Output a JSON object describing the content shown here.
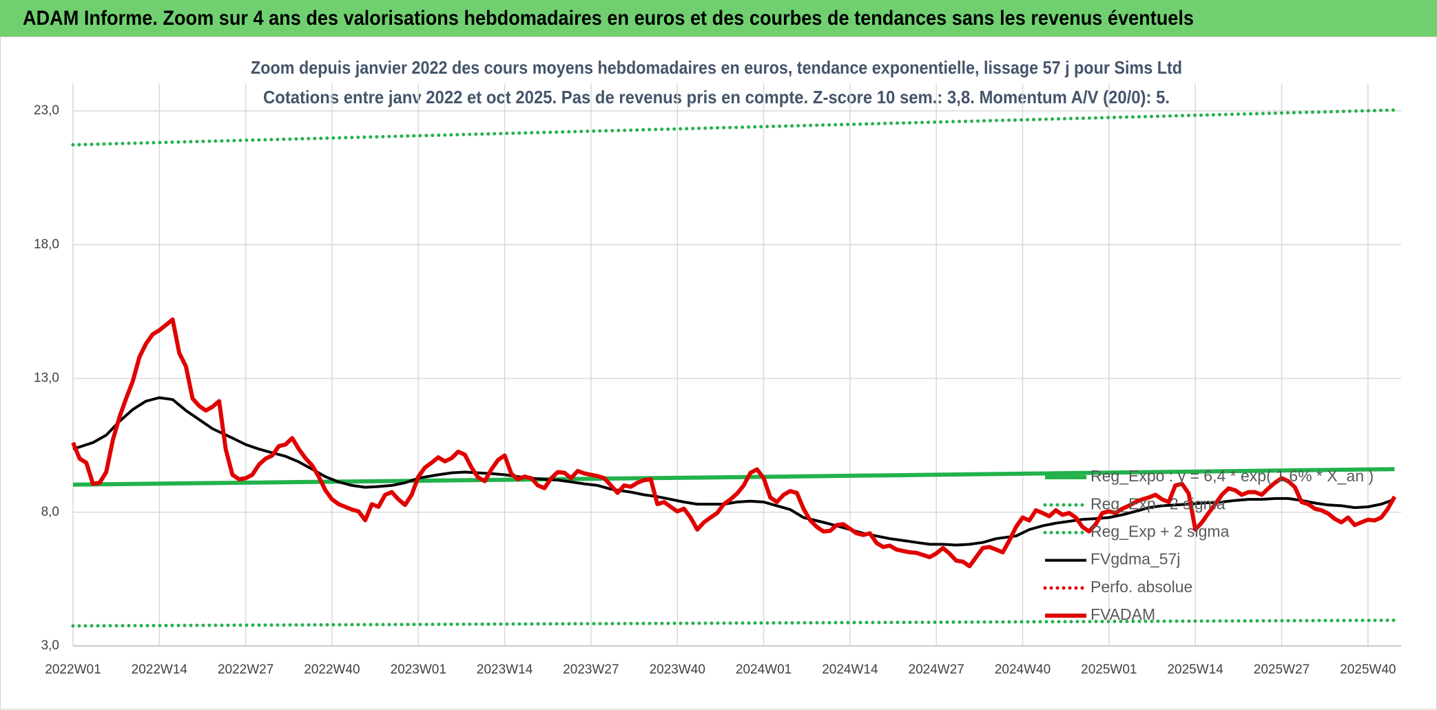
{
  "header": {
    "title": "ADAM Informe. Zoom sur 4 ans des valorisations hebdomadaires en euros et des courbes de tendances sans les revenus éventuels"
  },
  "chart_data": {
    "type": "line",
    "title": "Zoom depuis janvier 2022 des cours moyens hebdomadaires en euros, tendance exponentielle, lissage 57 j pour Sims Ltd",
    "subtitle": "Cotations entre janv 2022 et oct 2025. Pas de revenus pris en compte. Z-score 10 sem.: 3,8. Momentum A/V (20/0): 5.",
    "xlim": [
      0,
      200
    ],
    "xticks": [
      {
        "value": 0,
        "label": "2022W01"
      },
      {
        "value": 13,
        "label": "2022W14"
      },
      {
        "value": 26,
        "label": "2022W27"
      },
      {
        "value": 39,
        "label": "2022W40"
      },
      {
        "value": 52,
        "label": "2023W01"
      },
      {
        "value": 65,
        "label": "2023W14"
      },
      {
        "value": 78,
        "label": "2023W27"
      },
      {
        "value": 91,
        "label": "2023W40"
      },
      {
        "value": 104,
        "label": "2024W01"
      },
      {
        "value": 117,
        "label": "2024W14"
      },
      {
        "value": 130,
        "label": "2024W27"
      },
      {
        "value": 143,
        "label": "2024W40"
      },
      {
        "value": 156,
        "label": "2025W01"
      },
      {
        "value": 169,
        "label": "2025W14"
      },
      {
        "value": 182,
        "label": "2025W27"
      },
      {
        "value": 195,
        "label": "2025W40"
      }
    ],
    "ylim": [
      3,
      23
    ],
    "yticks": [
      {
        "value": 3,
        "label": "3,0"
      },
      {
        "value": 8,
        "label": "8,0"
      },
      {
        "value": 13,
        "label": "13,0"
      },
      {
        "value": 18,
        "label": "18,0"
      },
      {
        "value": 23,
        "label": "23,0"
      }
    ],
    "grid": true,
    "legend": "right",
    "series": [
      {
        "name": "Reg_Expo : y = 6,4 * exp( 1,6% * X_an )",
        "color": "#22b14c",
        "style": "solid",
        "x": [
          0,
          100,
          199
        ],
        "values": [
          9.03,
          9.31,
          9.61
        ]
      },
      {
        "name": "Reg_Exp - 2 sigma",
        "color": "#22b14c",
        "style": "dotted",
        "x": [
          0,
          199
        ],
        "values": [
          3.75,
          3.96
        ]
      },
      {
        "name": "Reg_Exp + 2 sigma",
        "color": "#22b14c",
        "style": "dotted",
        "x": [
          0,
          199
        ],
        "values": [
          21.73,
          23.03
        ]
      },
      {
        "name": "FVgdma_57j",
        "color": "#000000",
        "style": "solid",
        "x": [
          0,
          3,
          5,
          7,
          9,
          11,
          13,
          15,
          17,
          19,
          21,
          24,
          26,
          28,
          30,
          32,
          34,
          36,
          38,
          40,
          42,
          44,
          46,
          48,
          50,
          52,
          55,
          57,
          59,
          61,
          63,
          65,
          67,
          69,
          71,
          73,
          75,
          77,
          79,
          81,
          84,
          86,
          88,
          90,
          92,
          94,
          96,
          98,
          100,
          102,
          104,
          106,
          108,
          110,
          113,
          115,
          117,
          119,
          121,
          123,
          125,
          127,
          129,
          131,
          133,
          135,
          137,
          139,
          142,
          144,
          146,
          148,
          150,
          152,
          154,
          156,
          158,
          160,
          162,
          164,
          166,
          168,
          170,
          173,
          175,
          177,
          179,
          181,
          183,
          185,
          187,
          189,
          191,
          193,
          195,
          197,
          199
        ],
        "values": [
          10.36,
          10.6,
          10.88,
          11.4,
          11.84,
          12.15,
          12.28,
          12.21,
          11.8,
          11.46,
          11.12,
          10.77,
          10.53,
          10.36,
          10.22,
          10.09,
          9.88,
          9.61,
          9.33,
          9.13,
          9.0,
          8.93,
          8.96,
          9.0,
          9.1,
          9.27,
          9.4,
          9.47,
          9.5,
          9.47,
          9.44,
          9.4,
          9.33,
          9.27,
          9.23,
          9.2,
          9.13,
          9.06,
          9.0,
          8.86,
          8.75,
          8.65,
          8.58,
          8.48,
          8.38,
          8.3,
          8.3,
          8.3,
          8.38,
          8.41,
          8.38,
          8.24,
          8.1,
          7.8,
          7.62,
          7.49,
          7.35,
          7.21,
          7.11,
          7.01,
          6.94,
          6.87,
          6.8,
          6.8,
          6.77,
          6.8,
          6.87,
          7.01,
          7.11,
          7.35,
          7.49,
          7.59,
          7.66,
          7.73,
          7.76,
          7.8,
          7.9,
          8.03,
          8.17,
          8.24,
          8.27,
          8.3,
          8.34,
          8.38,
          8.44,
          8.48,
          8.48,
          8.51,
          8.51,
          8.44,
          8.34,
          8.27,
          8.24,
          8.17,
          8.2,
          8.3,
          8.48
        ]
      },
      {
        "name": "Perfo. absolue",
        "color": "#e00000",
        "style": "dotted",
        "x": [],
        "values": []
      },
      {
        "name": "FVADAM",
        "color": "#e00000",
        "style": "solid",
        "x": [
          0,
          1,
          2,
          3,
          4,
          5,
          6,
          7,
          8,
          9,
          10,
          11,
          12,
          13,
          14,
          15,
          16,
          17,
          18,
          19,
          20,
          21,
          22,
          23,
          24,
          25,
          26,
          27,
          28,
          29,
          30,
          31,
          32,
          33,
          34,
          35,
          36,
          37,
          38,
          39,
          40,
          41,
          42,
          43,
          44,
          45,
          46,
          47,
          48,
          49,
          50,
          51,
          52,
          53,
          54,
          55,
          56,
          57,
          58,
          59,
          60,
          61,
          62,
          63,
          64,
          65,
          66,
          67,
          68,
          69,
          70,
          71,
          72,
          73,
          74,
          75,
          76,
          77,
          78,
          79,
          80,
          81,
          82,
          83,
          84,
          85,
          86,
          87,
          88,
          89,
          90,
          91,
          92,
          93,
          94,
          95,
          96,
          97,
          98,
          99,
          100,
          101,
          102,
          103,
          104,
          105,
          106,
          107,
          108,
          109,
          110,
          111,
          112,
          113,
          114,
          115,
          116,
          117,
          118,
          119,
          120,
          121,
          122,
          123,
          124,
          125,
          126,
          127,
          128,
          129,
          130,
          131,
          132,
          133,
          134,
          135,
          136,
          137,
          138,
          139,
          140,
          141,
          142,
          143,
          144,
          145,
          146,
          147,
          148,
          149,
          150,
          151,
          152,
          153,
          154,
          155,
          156,
          157,
          158,
          159,
          160,
          161,
          162,
          163,
          164,
          165,
          166,
          167,
          168,
          169,
          170,
          171,
          172,
          173,
          174,
          175,
          176,
          177,
          178,
          179,
          180,
          181,
          182,
          183,
          184,
          185,
          186,
          187,
          188,
          189,
          190,
          191,
          192,
          193,
          194,
          195,
          196,
          197,
          198,
          199
        ],
        "values": [
          10.6,
          10.0,
          9.85,
          9.06,
          9.1,
          9.5,
          10.7,
          11.56,
          12.25,
          12.9,
          13.8,
          14.3,
          14.65,
          14.8,
          15.0,
          15.2,
          13.95,
          13.45,
          12.25,
          11.97,
          11.8,
          11.94,
          12.15,
          10.35,
          9.4,
          9.23,
          9.27,
          9.4,
          9.78,
          10.0,
          10.12,
          10.47,
          10.53,
          10.77,
          10.36,
          10.02,
          9.75,
          9.33,
          8.82,
          8.48,
          8.3,
          8.2,
          8.1,
          8.03,
          7.7,
          8.3,
          8.2,
          8.65,
          8.75,
          8.48,
          8.27,
          8.65,
          9.33,
          9.67,
          9.85,
          10.05,
          9.9,
          10.02,
          10.26,
          10.15,
          9.67,
          9.3,
          9.16,
          9.6,
          9.95,
          10.12,
          9.44,
          9.23,
          9.33,
          9.27,
          9.0,
          8.9,
          9.27,
          9.5,
          9.47,
          9.27,
          9.54,
          9.45,
          9.4,
          9.35,
          9.27,
          9.0,
          8.72,
          9.0,
          8.95,
          9.1,
          9.2,
          9.23,
          8.3,
          8.38,
          8.2,
          8.03,
          8.13,
          7.8,
          7.35,
          7.62,
          7.8,
          7.97,
          8.3,
          8.48,
          8.7,
          9.0,
          9.47,
          9.6,
          9.27,
          8.55,
          8.38,
          8.65,
          8.79,
          8.72,
          8.13,
          7.7,
          7.45,
          7.28,
          7.3,
          7.52,
          7.55,
          7.38,
          7.21,
          7.15,
          7.21,
          6.85,
          6.7,
          6.75,
          6.6,
          6.55,
          6.5,
          6.48,
          6.4,
          6.32,
          6.46,
          6.66,
          6.45,
          6.19,
          6.15,
          5.98,
          6.32,
          6.66,
          6.7,
          6.6,
          6.5,
          6.94,
          7.45,
          7.8,
          7.69,
          8.07,
          7.97,
          7.85,
          8.07,
          7.9,
          7.97,
          7.8,
          7.45,
          7.28,
          7.55,
          7.97,
          8.03,
          7.97,
          8.13,
          8.24,
          8.38,
          8.48,
          8.55,
          8.65,
          8.48,
          8.38,
          9.0,
          9.06,
          8.7,
          7.35,
          7.62,
          7.97,
          8.3,
          8.65,
          8.89,
          8.82,
          8.65,
          8.75,
          8.75,
          8.65,
          8.89,
          9.1,
          9.27,
          9.16,
          8.93,
          8.38,
          8.3,
          8.13,
          8.07,
          7.95,
          7.75,
          7.62,
          7.8,
          7.52,
          7.62,
          7.72,
          7.69,
          7.8,
          8.13,
          8.58
        ]
      }
    ]
  }
}
